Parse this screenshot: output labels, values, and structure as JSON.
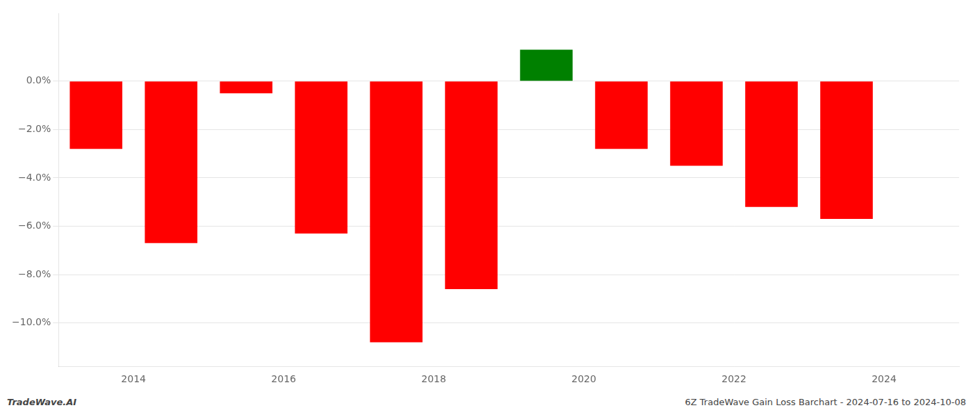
{
  "chart_data": {
    "type": "bar",
    "x": [
      2013.5,
      2014.5,
      2015.5,
      2016.5,
      2017.5,
      2018.5,
      2019.5,
      2020.5,
      2021.5,
      2022.5,
      2023.5
    ],
    "values": [
      -0.028,
      -0.067,
      -0.005,
      -0.063,
      -0.108,
      -0.086,
      0.013,
      -0.028,
      -0.035,
      -0.052,
      -0.057
    ],
    "colors": [
      "#ff0000",
      "#ff0000",
      "#ff0000",
      "#ff0000",
      "#ff0000",
      "#ff0000",
      "#008000",
      "#ff0000",
      "#ff0000",
      "#ff0000",
      "#ff0000"
    ],
    "xlim": [
      2013.0,
      2025.0
    ],
    "ylim": [
      -0.118,
      0.028
    ],
    "xticks": [
      2014,
      2016,
      2018,
      2020,
      2022,
      2024
    ],
    "yticks": [
      {
        "value": 0.0,
        "label": "0.0%"
      },
      {
        "value": -0.02,
        "label": "−2.0%"
      },
      {
        "value": -0.04,
        "label": "−4.0%"
      },
      {
        "value": -0.06,
        "label": "−6.0%"
      },
      {
        "value": -0.08,
        "label": "−8.0%"
      },
      {
        "value": -0.1,
        "label": "−10.0%"
      }
    ],
    "grid": "y",
    "annotations": [
      "TradeWave.AI",
      "6Z TradeWave Gain Loss Barchart - 2024-07-16 to 2024-10-08"
    ]
  }
}
